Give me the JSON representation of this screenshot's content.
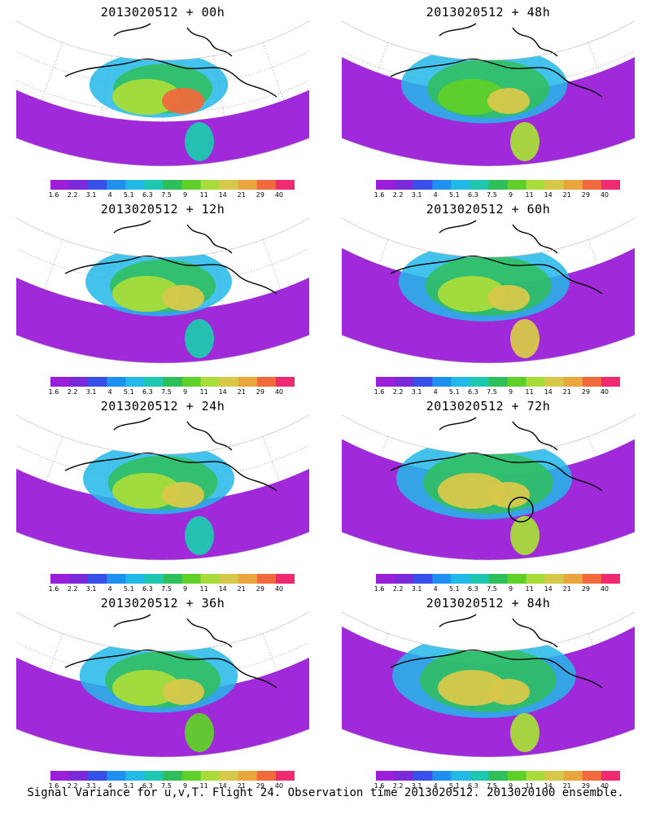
{
  "colorbar": {
    "labels": [
      "1.6",
      "2.2",
      "3.1",
      "4",
      "5.1",
      "6.3",
      "7.5",
      "9",
      "11",
      "14",
      "21",
      "29",
      "40"
    ],
    "colors": [
      "#9b1fd8",
      "#7a2ad8",
      "#3850e8",
      "#1f8ff0",
      "#22b8e8",
      "#1ec8b0",
      "#2fbf5a",
      "#5fd02a",
      "#a8dc3a",
      "#d7c84a",
      "#e8a63c",
      "#f06a3c",
      "#f02a70"
    ]
  },
  "panels": [
    {
      "title": "2013020512 + 00h",
      "map": "variance-map-00h",
      "level": 0.42,
      "variance_blobs": [
        {
          "v": 11
        },
        {
          "v": 29
        },
        {
          "v": 6.3
        }
      ],
      "target_circle": false
    },
    {
      "title": "2013020512 + 48h",
      "map": "variance-map-48h",
      "level": 0.7,
      "variance_blobs": [
        {
          "v": 9
        },
        {
          "v": 14
        },
        {
          "v": 11
        }
      ],
      "target_circle": false
    },
    {
      "title": "2013020512 + 12h",
      "map": "variance-map-12h",
      "level": 0.5,
      "variance_blobs": [
        {
          "v": 11
        },
        {
          "v": 14
        },
        {
          "v": 6.3
        }
      ],
      "target_circle": false
    },
    {
      "title": "2013020512 + 60h",
      "map": "variance-map-60h",
      "level": 0.75,
      "variance_blobs": [
        {
          "v": 11
        },
        {
          "v": 14
        },
        {
          "v": 14
        }
      ],
      "target_circle": false
    },
    {
      "title": "2013020512 + 24h",
      "map": "variance-map-24h",
      "level": 0.55,
      "variance_blobs": [
        {
          "v": 11
        },
        {
          "v": 14
        },
        {
          "v": 6.3
        }
      ],
      "target_circle": false
    },
    {
      "title": "2013020512 + 72h",
      "map": "variance-map-72h",
      "level": 0.8,
      "variance_blobs": [
        {
          "v": 14
        },
        {
          "v": 14
        },
        {
          "v": 11
        }
      ],
      "target_circle": true
    },
    {
      "title": "2013020512 + 36h",
      "map": "variance-map-36h",
      "level": 0.62,
      "variance_blobs": [
        {
          "v": 11
        },
        {
          "v": 14
        },
        {
          "v": 9
        }
      ],
      "target_circle": false
    },
    {
      "title": "2013020512 + 84h",
      "map": "variance-map-84h",
      "level": 0.88,
      "variance_blobs": [
        {
          "v": 14
        },
        {
          "v": 14
        },
        {
          "v": 11
        }
      ],
      "target_circle": false
    }
  ],
  "footer": "Signal Variance for u,v,T. Flight 24. Observation time 2013020512. 2013020100 ensemble."
}
